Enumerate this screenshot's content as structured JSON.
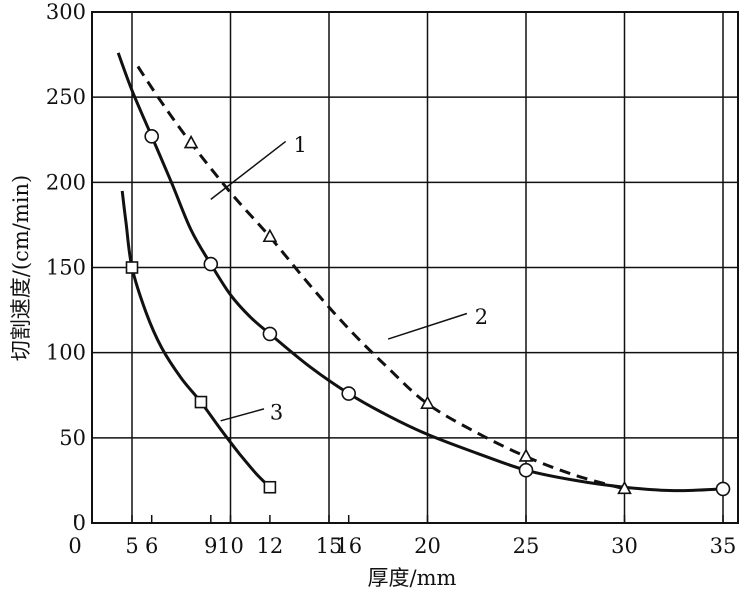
{
  "chart_data": {
    "type": "line",
    "title": "",
    "xlabel": "厚度/mm",
    "ylabel": "切割速度/(cm/min)",
    "xlim": [
      0,
      36
    ],
    "ylim": [
      0,
      300
    ],
    "grid": true,
    "x_ticks": [
      "0",
      "5",
      "6",
      "9",
      "10",
      "12",
      "15",
      "16",
      "20",
      "25",
      "30",
      "35"
    ],
    "x_tick_values": [
      0,
      5,
      6,
      9,
      10,
      12,
      15,
      16,
      20,
      25,
      30,
      35
    ],
    "y_ticks": [
      0,
      50,
      100,
      150,
      200,
      250,
      300
    ],
    "x_gridlines": [
      5,
      10,
      15,
      20,
      25,
      30,
      35
    ],
    "series": [
      {
        "name": "1",
        "marker": "circle",
        "style": "solid",
        "points": [
          [
            6,
            227
          ],
          [
            9,
            152
          ],
          [
            12,
            111
          ],
          [
            16,
            76
          ],
          [
            25,
            31
          ],
          [
            35,
            20
          ]
        ],
        "curve": [
          [
            4.3,
            276
          ],
          [
            5,
            254
          ],
          [
            6,
            227
          ],
          [
            7,
            200
          ],
          [
            8,
            172
          ],
          [
            9,
            152
          ],
          [
            10,
            134
          ],
          [
            11,
            121
          ],
          [
            12,
            111
          ],
          [
            14,
            92
          ],
          [
            16,
            76
          ],
          [
            18,
            63
          ],
          [
            20,
            52
          ],
          [
            22.5,
            41
          ],
          [
            25,
            31
          ],
          [
            27.5,
            25
          ],
          [
            30,
            21
          ],
          [
            32.5,
            19
          ],
          [
            35,
            20
          ]
        ]
      },
      {
        "name": "2",
        "marker": "triangle",
        "style": "dashed",
        "points": [
          [
            8,
            223
          ],
          [
            12,
            168
          ],
          [
            20,
            70
          ],
          [
            25,
            39
          ],
          [
            30,
            20
          ]
        ],
        "curve": [
          [
            5.3,
            268
          ],
          [
            6.5,
            247
          ],
          [
            8,
            223
          ],
          [
            10,
            194
          ],
          [
            12,
            168
          ],
          [
            14,
            140
          ],
          [
            16,
            114
          ],
          [
            18,
            91
          ],
          [
            20,
            70
          ],
          [
            22.5,
            53
          ],
          [
            25,
            39
          ],
          [
            27.5,
            28
          ],
          [
            30,
            20
          ]
        ]
      },
      {
        "name": "3",
        "marker": "square",
        "style": "solid",
        "points": [
          [
            5,
            150
          ],
          [
            8.5,
            71
          ],
          [
            12,
            21
          ]
        ],
        "curve": [
          [
            4.5,
            195
          ],
          [
            4.7,
            176
          ],
          [
            5,
            150
          ],
          [
            5.7,
            124
          ],
          [
            6.5,
            103
          ],
          [
            7.5,
            85
          ],
          [
            8.5,
            71
          ],
          [
            9.5,
            55
          ],
          [
            10.5,
            40
          ],
          [
            11.3,
            29
          ],
          [
            12,
            21
          ]
        ]
      }
    ],
    "curve_labels": [
      {
        "text": "1",
        "leader_from": [
          9,
          190
        ],
        "leader_to": [
          12.8,
          224
        ],
        "text_at": [
          13.2,
          222
        ]
      },
      {
        "text": "2",
        "leader_from": [
          18,
          108
        ],
        "leader_to": [
          22,
          123
        ],
        "text_at": [
          22.4,
          121
        ]
      },
      {
        "text": "3",
        "leader_from": [
          9.5,
          60
        ],
        "leader_to": [
          11.7,
          67
        ],
        "text_at": [
          12.0,
          65
        ]
      }
    ]
  }
}
